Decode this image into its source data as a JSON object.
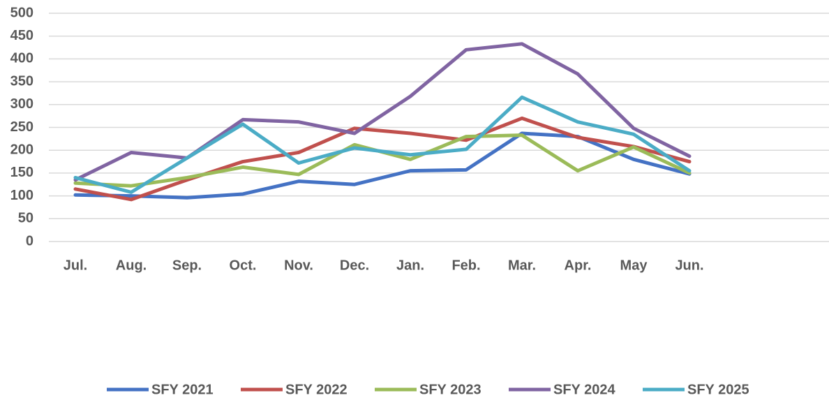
{
  "chart_data": {
    "type": "line",
    "categories": [
      "Jul.",
      "Aug.",
      "Sep.",
      "Oct.",
      "Nov.",
      "Dec.",
      "Jan.",
      "Feb.",
      "Mar.",
      "Apr.",
      "May",
      "Jun."
    ],
    "series": [
      {
        "name": "SFY 2021",
        "color": "#4472c4",
        "values": [
          102,
          100,
          96,
          104,
          132,
          125,
          155,
          157,
          237,
          230,
          180,
          148
        ]
      },
      {
        "name": "SFY 2022",
        "color": "#c0504d",
        "values": [
          115,
          92,
          135,
          175,
          195,
          248,
          237,
          222,
          270,
          228,
          208,
          175
        ]
      },
      {
        "name": "SFY 2023",
        "color": "#9bbb59",
        "values": [
          128,
          122,
          140,
          163,
          147,
          212,
          180,
          230,
          233,
          155,
          207,
          150
        ]
      },
      {
        "name": "SFY 2024",
        "color": "#8064a2",
        "values": [
          135,
          195,
          183,
          267,
          262,
          237,
          318,
          420,
          433,
          367,
          248,
          187
        ]
      },
      {
        "name": "SFY 2025",
        "color": "#4bacc6",
        "values": [
          140,
          108,
          183,
          257,
          172,
          205,
          190,
          202,
          316,
          262,
          235,
          155
        ]
      }
    ],
    "ylim": [
      0,
      500
    ],
    "yticks": [
      0,
      50,
      100,
      150,
      200,
      250,
      300,
      350,
      400,
      450,
      500
    ],
    "grid": true,
    "legend": "bottom"
  }
}
